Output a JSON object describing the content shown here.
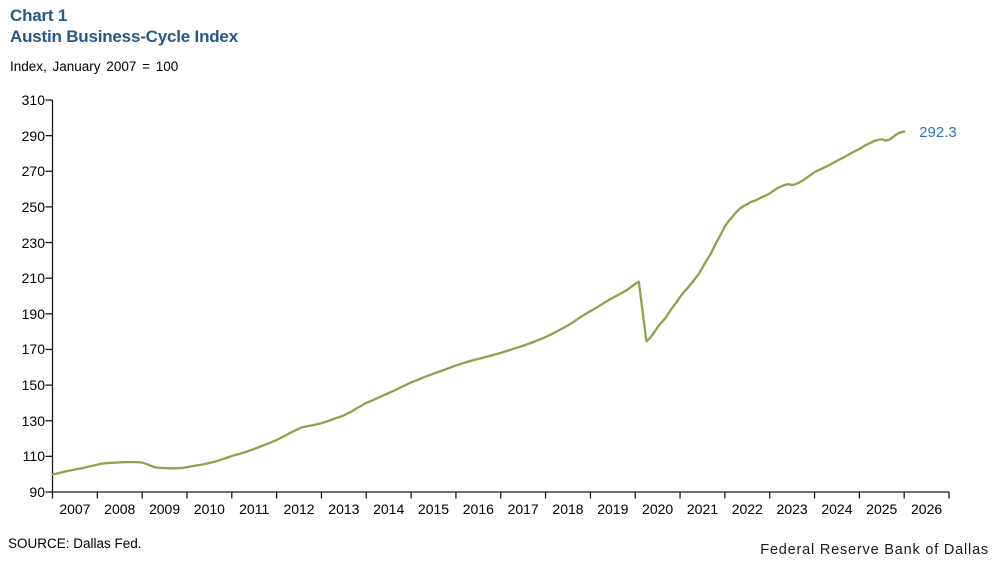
{
  "header": {
    "chart_number": "Chart 1",
    "title": "Austin Business-Cycle Index",
    "subtitle": "Index, January 2007 = 100"
  },
  "footer": {
    "source": "SOURCE: Dallas Fed.",
    "branding": "Federal Reserve Bank of Dallas"
  },
  "colors": {
    "title_blue": "#27588a",
    "end_label_blue": "#2e74b5",
    "line_green": "#89a44c",
    "axis_color": "#1a1a1a"
  },
  "chart_data": {
    "type": "line",
    "title": "Austin Business-Cycle Index",
    "ylabel": "Index, January 2007 = 100",
    "xlabel": "",
    "grid": false,
    "legend_position": "none",
    "ylim": [
      90,
      310
    ],
    "ytick_interval": 20,
    "yticks": [
      90,
      110,
      130,
      150,
      170,
      190,
      210,
      230,
      250,
      270,
      290,
      310
    ],
    "xlim": [
      2007,
      2027
    ],
    "xtick_labels": [
      "2007",
      "2008",
      "2009",
      "2010",
      "2011",
      "2012",
      "2013",
      "2014",
      "2015",
      "2016",
      "2017",
      "2018",
      "2019",
      "2020",
      "2021",
      "2022",
      "2023",
      "2024",
      "2025",
      "2026"
    ],
    "end_label": "292.3",
    "end_value": 292.3,
    "series": [
      {
        "name": "Austin Business-Cycle Index",
        "points": [
          [
            2007.0,
            100.0
          ],
          [
            2007.08,
            100.2
          ],
          [
            2007.17,
            100.8
          ],
          [
            2007.25,
            101.3
          ],
          [
            2007.33,
            101.8
          ],
          [
            2007.42,
            102.2
          ],
          [
            2007.5,
            102.6
          ],
          [
            2007.58,
            103.0
          ],
          [
            2007.67,
            103.4
          ],
          [
            2007.75,
            103.9
          ],
          [
            2007.83,
            104.4
          ],
          [
            2007.92,
            104.9
          ],
          [
            2008.0,
            105.4
          ],
          [
            2008.08,
            105.8
          ],
          [
            2008.17,
            106.1
          ],
          [
            2008.25,
            106.3
          ],
          [
            2008.33,
            106.4
          ],
          [
            2008.42,
            106.5
          ],
          [
            2008.5,
            106.6
          ],
          [
            2008.58,
            106.7
          ],
          [
            2008.67,
            106.8
          ],
          [
            2008.75,
            106.8
          ],
          [
            2008.83,
            106.8
          ],
          [
            2008.92,
            106.7
          ],
          [
            2009.0,
            106.5
          ],
          [
            2009.08,
            105.9
          ],
          [
            2009.17,
            105.0
          ],
          [
            2009.25,
            104.2
          ],
          [
            2009.33,
            103.7
          ],
          [
            2009.42,
            103.5
          ],
          [
            2009.5,
            103.4
          ],
          [
            2009.58,
            103.3
          ],
          [
            2009.67,
            103.3
          ],
          [
            2009.75,
            103.3
          ],
          [
            2009.83,
            103.4
          ],
          [
            2009.92,
            103.6
          ],
          [
            2010.0,
            104.0
          ],
          [
            2010.17,
            104.7
          ],
          [
            2010.33,
            105.4
          ],
          [
            2010.5,
            106.3
          ],
          [
            2010.67,
            107.4
          ],
          [
            2010.83,
            108.7
          ],
          [
            2011.0,
            110.2
          ],
          [
            2011.17,
            111.4
          ],
          [
            2011.33,
            112.7
          ],
          [
            2011.5,
            114.2
          ],
          [
            2011.67,
            115.8
          ],
          [
            2011.83,
            117.4
          ],
          [
            2012.0,
            119.2
          ],
          [
            2012.17,
            121.3
          ],
          [
            2012.33,
            123.5
          ],
          [
            2012.5,
            125.6
          ],
          [
            2012.58,
            126.4
          ],
          [
            2012.67,
            126.8
          ],
          [
            2012.83,
            127.6
          ],
          [
            2013.0,
            128.6
          ],
          [
            2013.17,
            130.0
          ],
          [
            2013.33,
            131.5
          ],
          [
            2013.5,
            133.0
          ],
          [
            2013.67,
            135.2
          ],
          [
            2013.83,
            137.6
          ],
          [
            2014.0,
            140.0
          ],
          [
            2014.17,
            141.8
          ],
          [
            2014.33,
            143.6
          ],
          [
            2014.5,
            145.5
          ],
          [
            2014.67,
            147.5
          ],
          [
            2014.83,
            149.5
          ],
          [
            2015.0,
            151.5
          ],
          [
            2015.17,
            153.2
          ],
          [
            2015.33,
            154.9
          ],
          [
            2015.5,
            156.4
          ],
          [
            2015.67,
            157.9
          ],
          [
            2015.83,
            159.4
          ],
          [
            2016.0,
            161.0
          ],
          [
            2016.17,
            162.4
          ],
          [
            2016.33,
            163.6
          ],
          [
            2016.5,
            164.7
          ],
          [
            2016.67,
            165.8
          ],
          [
            2016.83,
            166.9
          ],
          [
            2017.0,
            168.1
          ],
          [
            2017.17,
            169.4
          ],
          [
            2017.33,
            170.7
          ],
          [
            2017.5,
            172.1
          ],
          [
            2017.67,
            173.6
          ],
          [
            2017.83,
            175.2
          ],
          [
            2018.0,
            177.0
          ],
          [
            2018.17,
            179.0
          ],
          [
            2018.33,
            181.2
          ],
          [
            2018.5,
            183.5
          ],
          [
            2018.67,
            186.3
          ],
          [
            2018.83,
            189.0
          ],
          [
            2019.0,
            191.5
          ],
          [
            2019.17,
            194.0
          ],
          [
            2019.33,
            196.5
          ],
          [
            2019.5,
            199.0
          ],
          [
            2019.67,
            201.3
          ],
          [
            2019.83,
            203.6
          ],
          [
            2019.92,
            205.3
          ],
          [
            2020.0,
            206.8
          ],
          [
            2020.08,
            208.0
          ],
          [
            2020.25,
            174.5
          ],
          [
            2020.33,
            176.5
          ],
          [
            2020.42,
            179.5
          ],
          [
            2020.5,
            182.5
          ],
          [
            2020.58,
            185.0
          ],
          [
            2020.67,
            187.5
          ],
          [
            2020.75,
            190.5
          ],
          [
            2020.83,
            193.5
          ],
          [
            2020.92,
            196.5
          ],
          [
            2021.0,
            199.5
          ],
          [
            2021.08,
            202.0
          ],
          [
            2021.17,
            204.5
          ],
          [
            2021.25,
            207.0
          ],
          [
            2021.33,
            209.5
          ],
          [
            2021.42,
            212.5
          ],
          [
            2021.5,
            216.0
          ],
          [
            2021.58,
            219.5
          ],
          [
            2021.67,
            223.0
          ],
          [
            2021.75,
            227.0
          ],
          [
            2021.83,
            231.0
          ],
          [
            2021.92,
            235.0
          ],
          [
            2022.0,
            239.0
          ],
          [
            2022.08,
            242.0
          ],
          [
            2022.17,
            244.5
          ],
          [
            2022.25,
            247.0
          ],
          [
            2022.33,
            249.0
          ],
          [
            2022.42,
            250.5
          ],
          [
            2022.5,
            251.5
          ],
          [
            2022.58,
            252.8
          ],
          [
            2022.67,
            253.5
          ],
          [
            2022.75,
            254.5
          ],
          [
            2022.83,
            255.5
          ],
          [
            2022.92,
            256.5
          ],
          [
            2023.0,
            257.5
          ],
          [
            2023.08,
            259.0
          ],
          [
            2023.17,
            260.5
          ],
          [
            2023.25,
            261.5
          ],
          [
            2023.33,
            262.3
          ],
          [
            2023.42,
            262.8
          ],
          [
            2023.5,
            262.3
          ],
          [
            2023.58,
            262.8
          ],
          [
            2023.67,
            263.8
          ],
          [
            2023.75,
            265.0
          ],
          [
            2023.83,
            266.5
          ],
          [
            2023.92,
            268.0
          ],
          [
            2024.0,
            269.5
          ],
          [
            2024.17,
            271.5
          ],
          [
            2024.33,
            273.5
          ],
          [
            2024.5,
            275.8
          ],
          [
            2024.67,
            278.0
          ],
          [
            2024.83,
            280.3
          ],
          [
            2025.0,
            282.5
          ],
          [
            2025.08,
            283.8
          ],
          [
            2025.17,
            285.0
          ],
          [
            2025.25,
            286.0
          ],
          [
            2025.33,
            287.0
          ],
          [
            2025.42,
            287.6
          ],
          [
            2025.5,
            288.0
          ],
          [
            2025.58,
            287.2
          ],
          [
            2025.67,
            287.8
          ],
          [
            2025.75,
            289.3
          ],
          [
            2025.83,
            290.8
          ],
          [
            2025.92,
            291.8
          ],
          [
            2026.0,
            292.3
          ]
        ]
      }
    ]
  }
}
